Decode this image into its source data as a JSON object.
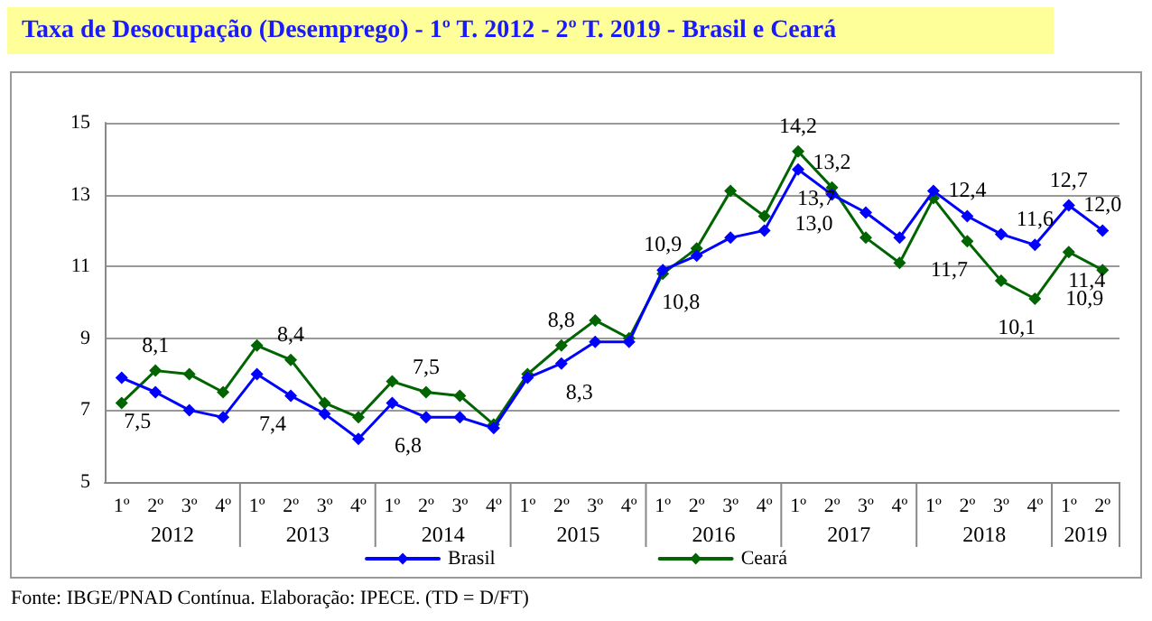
{
  "chart_data": {
    "type": "line",
    "title": "Taxa de Desocupação (Desemprego) - 1º T. 2012 - 2º T. 2019 - Brasil e Ceará",
    "categories": [
      "1º",
      "2º",
      "3º",
      "4º",
      "1º",
      "2º",
      "3º",
      "4º",
      "1º",
      "2º",
      "3º",
      "4º",
      "1º",
      "2º",
      "3º",
      "4º",
      "1º",
      "2º",
      "3º",
      "4º",
      "1º",
      "2º",
      "3º",
      "4º",
      "1º",
      "2º",
      "3º",
      "4º",
      "1º",
      "2º"
    ],
    "series": [
      {
        "name": "Brasil",
        "color": "#0000ff",
        "values": [
          7.9,
          7.5,
          7.0,
          6.8,
          8.0,
          7.4,
          6.9,
          6.2,
          7.2,
          6.8,
          6.8,
          6.5,
          7.9,
          8.3,
          8.9,
          8.9,
          10.9,
          11.3,
          11.8,
          12.0,
          13.7,
          13.0,
          12.5,
          11.8,
          13.1,
          12.4,
          11.9,
          11.6,
          12.7,
          12.0
        ],
        "value_labels": [
          null,
          "7,5",
          null,
          null,
          null,
          "7,4",
          null,
          null,
          null,
          "6,8",
          null,
          null,
          null,
          "8,3",
          null,
          null,
          "10,9",
          null,
          null,
          null,
          "13,7",
          "13,0",
          null,
          null,
          null,
          "12,4",
          null,
          "11,6",
          "12,7",
          "12,0"
        ]
      },
      {
        "name": "Ceará",
        "color": "#006400",
        "values": [
          7.2,
          8.1,
          8.0,
          7.5,
          8.8,
          8.4,
          7.2,
          6.8,
          7.8,
          7.5,
          7.4,
          6.6,
          8.0,
          8.8,
          9.5,
          9.0,
          10.8,
          11.5,
          13.1,
          12.4,
          14.2,
          13.2,
          11.8,
          11.1,
          12.9,
          11.7,
          10.6,
          10.1,
          11.4,
          10.9
        ],
        "value_labels": [
          null,
          "8,1",
          null,
          null,
          null,
          "8,4",
          null,
          null,
          null,
          "7,5",
          null,
          null,
          null,
          "8,8",
          null,
          null,
          "10,8",
          null,
          null,
          null,
          "14,2",
          "13,2",
          null,
          null,
          null,
          "11,7",
          null,
          "10,1",
          "11,4",
          "10,9"
        ]
      }
    ],
    "ylim": [
      5,
      15
    ],
    "yticks": [
      5,
      7,
      9,
      11,
      13,
      15
    ],
    "grid": "y",
    "legend": "bottom",
    "marker": "diamond",
    "line_style": "solid",
    "annotations": [
      "2012",
      "2013",
      "2014",
      "2015",
      "2016",
      "2017",
      "2018",
      "2019",
      "Fonte: IBGE/PNAD Contínua. Elaboração: IPECE. (TD = D/FT)"
    ]
  }
}
